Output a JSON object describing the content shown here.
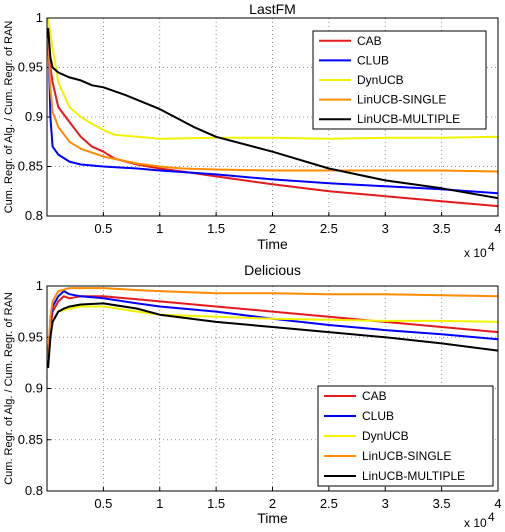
{
  "chart_data": [
    {
      "type": "line",
      "title": "LastFM",
      "xlabel": "Time",
      "ylabel": "Cum. Regr. of Alg. / Cum. Regr. of RAN",
      "x_multiplier": "x 10",
      "x_multiplier_exp": "4",
      "xlim": [
        0,
        4
      ],
      "ylim": [
        0.8,
        1
      ],
      "x_ticks": [
        "0.5",
        "1",
        "1.5",
        "2",
        "2.5",
        "3",
        "3.5",
        "4"
      ],
      "y_ticks": [
        "0.8",
        "0.85",
        "0.9",
        "0.95",
        "1"
      ],
      "grid": true,
      "legend_position": "top-right",
      "series": [
        {
          "name": "CAB",
          "color": "#e41a1c",
          "x": [
            0.01,
            0.03,
            0.05,
            0.1,
            0.2,
            0.3,
            0.4,
            0.5,
            0.6,
            0.8,
            1,
            1.2,
            1.5,
            2,
            2.5,
            3,
            3.5,
            4
          ],
          "y": [
            0.99,
            0.95,
            0.935,
            0.91,
            0.895,
            0.88,
            0.87,
            0.865,
            0.858,
            0.852,
            0.848,
            0.845,
            0.84,
            0.832,
            0.825,
            0.82,
            0.815,
            0.81
          ]
        },
        {
          "name": "CLUB",
          "color": "#0000ff",
          "x": [
            0.01,
            0.03,
            0.05,
            0.1,
            0.2,
            0.3,
            0.5,
            0.8,
            1,
            1.5,
            2,
            2.5,
            3,
            3.5,
            4
          ],
          "y": [
            0.99,
            0.9,
            0.87,
            0.862,
            0.855,
            0.852,
            0.85,
            0.848,
            0.846,
            0.842,
            0.837,
            0.833,
            0.83,
            0.827,
            0.823
          ]
        },
        {
          "name": "DynUCB",
          "color": "#f2f200",
          "x": [
            0.01,
            0.05,
            0.1,
            0.2,
            0.3,
            0.4,
            0.5,
            0.6,
            0.8,
            1,
            1.5,
            2,
            2.5,
            3,
            3.5,
            4
          ],
          "y": [
            1.0,
            0.97,
            0.935,
            0.91,
            0.9,
            0.893,
            0.887,
            0.882,
            0.88,
            0.878,
            0.879,
            0.879,
            0.878,
            0.879,
            0.879,
            0.88
          ]
        },
        {
          "name": "LinUCB-SINGLE",
          "color": "#ff8c00",
          "x": [
            0.01,
            0.03,
            0.05,
            0.1,
            0.2,
            0.3,
            0.5,
            0.8,
            1,
            1.2,
            1.5,
            2,
            2.5,
            3,
            3.5,
            4
          ],
          "y": [
            0.98,
            0.93,
            0.905,
            0.89,
            0.875,
            0.868,
            0.86,
            0.853,
            0.85,
            0.848,
            0.847,
            0.846,
            0.846,
            0.846,
            0.846,
            0.845
          ]
        },
        {
          "name": "LinUCB-MULTIPLE",
          "color": "#000000",
          "x": [
            0.01,
            0.03,
            0.05,
            0.1,
            0.2,
            0.3,
            0.4,
            0.5,
            0.7,
            1,
            1.3,
            1.5,
            2,
            2.5,
            3,
            3.5,
            4
          ],
          "y": [
            0.99,
            0.96,
            0.95,
            0.945,
            0.94,
            0.937,
            0.932,
            0.93,
            0.922,
            0.908,
            0.89,
            0.88,
            0.865,
            0.848,
            0.836,
            0.828,
            0.818
          ]
        }
      ]
    },
    {
      "type": "line",
      "title": "Delicious",
      "xlabel": "Time",
      "ylabel": "Cum. Regr. of Alg. / Cum. Regr. of RAN",
      "x_multiplier": "x 10",
      "x_multiplier_exp": "4",
      "xlim": [
        0,
        4
      ],
      "ylim": [
        0.8,
        1
      ],
      "x_ticks": [
        "0.5",
        "1",
        "1.5",
        "2",
        "2.5",
        "3",
        "3.5",
        "4"
      ],
      "y_ticks": [
        "0.8",
        "0.85",
        "0.9",
        "0.95",
        "1"
      ],
      "grid": true,
      "legend_position": "bottom-right",
      "series": [
        {
          "name": "CAB",
          "color": "#e41a1c",
          "x": [
            0.01,
            0.03,
            0.05,
            0.1,
            0.15,
            0.2,
            0.3,
            0.5,
            0.8,
            1,
            1.5,
            2,
            2.5,
            3,
            3.5,
            4
          ],
          "y": [
            0.93,
            0.96,
            0.975,
            0.985,
            0.99,
            0.988,
            0.99,
            0.99,
            0.987,
            0.985,
            0.98,
            0.975,
            0.97,
            0.965,
            0.96,
            0.955
          ]
        },
        {
          "name": "CLUB",
          "color": "#0000ff",
          "x": [
            0.01,
            0.03,
            0.05,
            0.1,
            0.15,
            0.2,
            0.3,
            0.5,
            0.8,
            1,
            1.5,
            2,
            2.5,
            3,
            3.5,
            4
          ],
          "y": [
            0.93,
            0.965,
            0.98,
            0.99,
            0.995,
            0.992,
            0.99,
            0.988,
            0.983,
            0.98,
            0.975,
            0.968,
            0.962,
            0.957,
            0.953,
            0.948
          ]
        },
        {
          "name": "DynUCB",
          "color": "#f2f200",
          "x": [
            0.01,
            0.03,
            0.05,
            0.1,
            0.2,
            0.3,
            0.5,
            0.8,
            1,
            1.5,
            2,
            2.5,
            3,
            3.5,
            4
          ],
          "y": [
            0.93,
            0.955,
            0.965,
            0.975,
            0.978,
            0.98,
            0.98,
            0.975,
            0.972,
            0.97,
            0.968,
            0.967,
            0.966,
            0.966,
            0.965
          ]
        },
        {
          "name": "LinUCB-SINGLE",
          "color": "#ff8c00",
          "x": [
            0.01,
            0.03,
            0.05,
            0.1,
            0.2,
            0.3,
            0.5,
            0.8,
            1,
            1.5,
            2,
            2.5,
            3,
            3.5,
            4
          ],
          "y": [
            0.93,
            0.97,
            0.985,
            0.995,
            0.998,
            0.998,
            0.998,
            0.996,
            0.995,
            0.993,
            0.993,
            0.992,
            0.992,
            0.991,
            0.99
          ]
        },
        {
          "name": "LinUCB-MULTIPLE",
          "color": "#000000",
          "x": [
            0.01,
            0.03,
            0.05,
            0.1,
            0.15,
            0.2,
            0.3,
            0.5,
            0.8,
            1,
            1.5,
            2,
            2.5,
            3,
            3.5,
            4
          ],
          "y": [
            0.92,
            0.95,
            0.965,
            0.975,
            0.978,
            0.98,
            0.982,
            0.983,
            0.978,
            0.972,
            0.965,
            0.96,
            0.955,
            0.95,
            0.944,
            0.937
          ]
        }
      ]
    }
  ]
}
